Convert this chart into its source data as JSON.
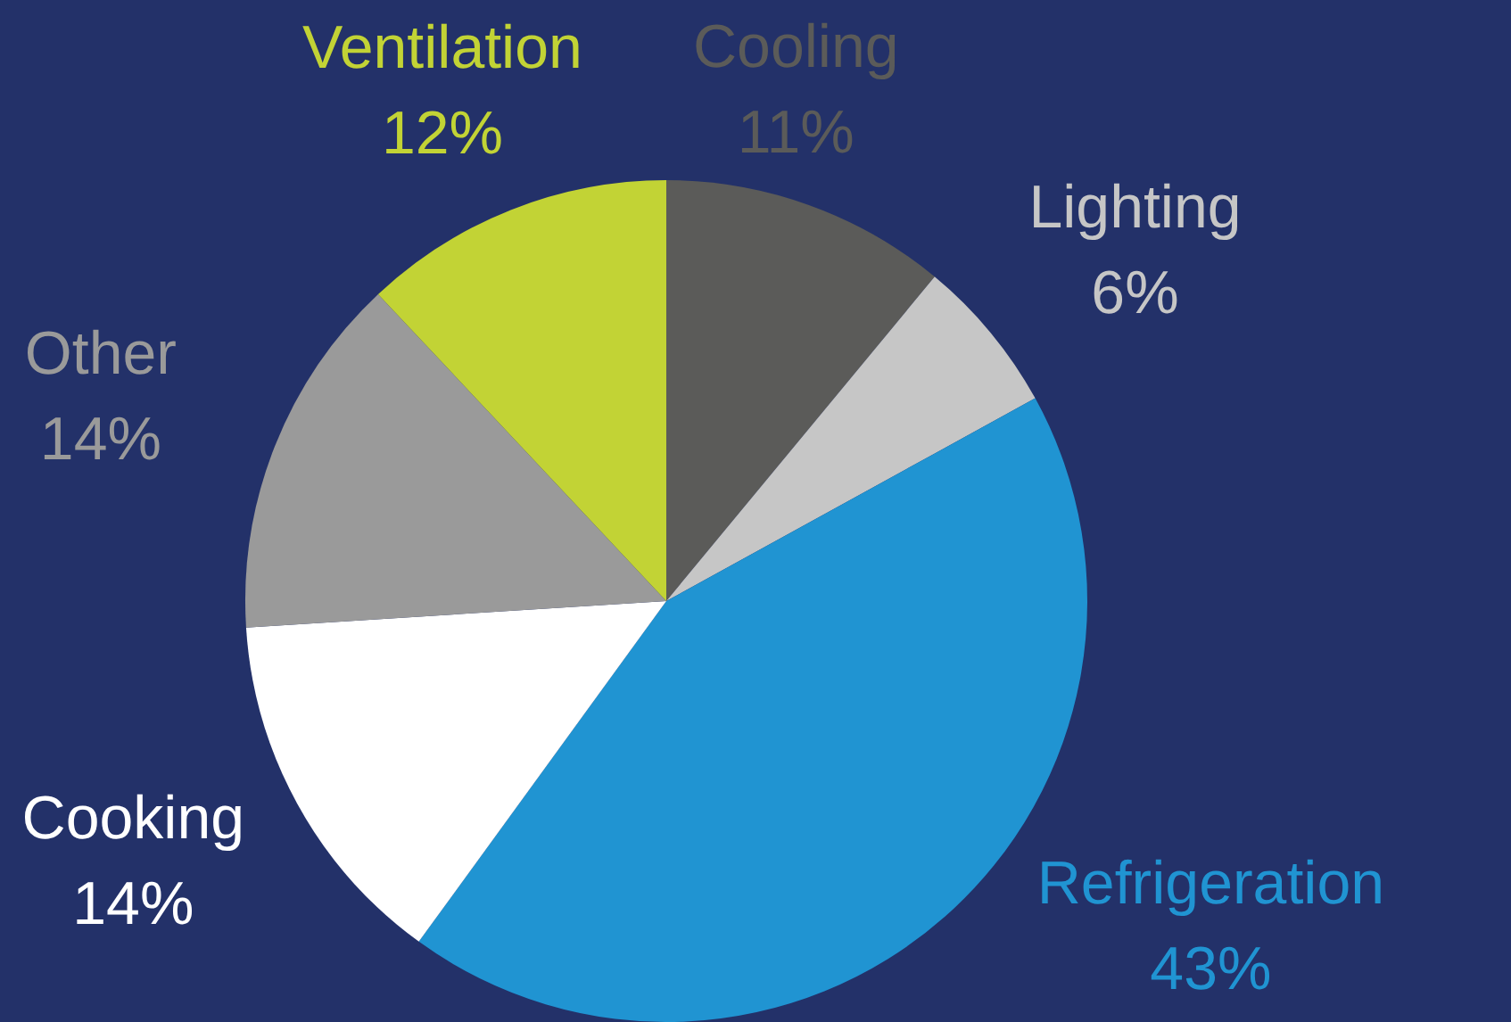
{
  "chart_data": {
    "type": "pie",
    "categories": [
      "Cooling",
      "Lighting",
      "Refrigeration",
      "Cooking",
      "Other",
      "Ventilation"
    ],
    "values": [
      11,
      6,
      43,
      14,
      14,
      12
    ],
    "colors": [
      "#5b5b59",
      "#c6c6c6",
      "#2094d2",
      "#ffffff",
      "#9a9a9a",
      "#c2d335"
    ],
    "value_labels": [
      "11%",
      "6%",
      "43%",
      "14%",
      "14%",
      "12%"
    ],
    "legend": false
  }
}
